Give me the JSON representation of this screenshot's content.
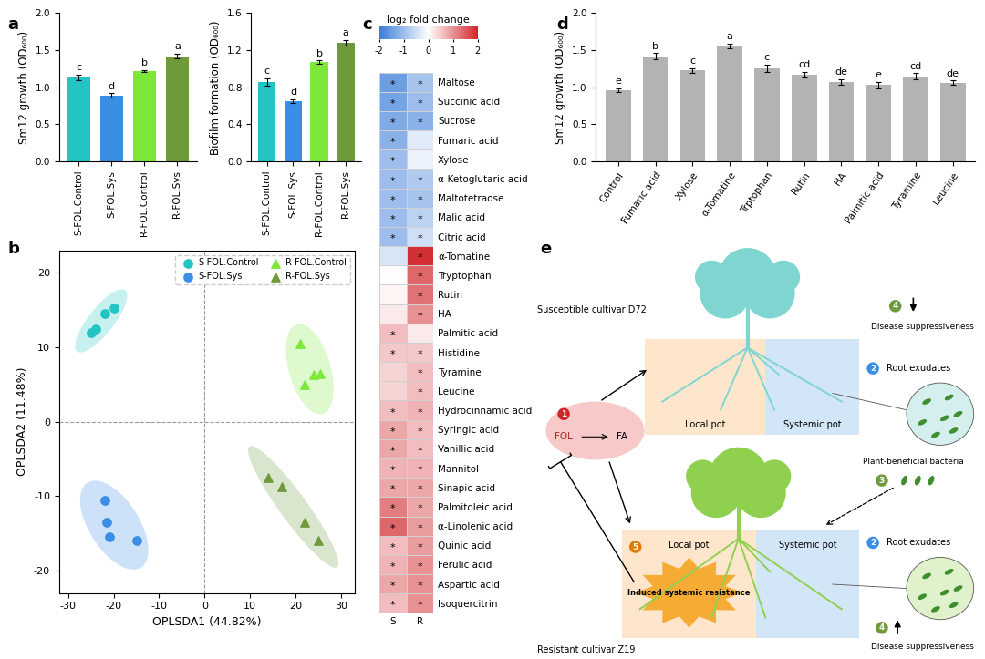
{
  "chart_data": [
    {
      "panel": "a",
      "type": "bar",
      "y_label": "Sm12 growth (OD₆₀₀)",
      "categories": [
        "S-FOL.Control",
        "S-FOL.Sys",
        "R-FOL.Control",
        "R-FOL.Sys"
      ],
      "values": [
        1.13,
        0.89,
        1.22,
        1.42
      ],
      "errors": [
        0.04,
        0.03,
        0.01,
        0.03
      ],
      "letters": [
        "c",
        "d",
        "b",
        "a"
      ],
      "colors": [
        "#22c4c4",
        "#3a8ee6",
        "#7ee83a",
        "#6f9a3c"
      ],
      "ylim": [
        0,
        2.0
      ],
      "yticks": [
        {
          "value": 0,
          "label": "0.0"
        },
        {
          "value": 0.5,
          "label": "0.5"
        },
        {
          "value": 1.0,
          "label": "1.0"
        },
        {
          "value": 1.5,
          "label": "1.5"
        },
        {
          "value": 2.0,
          "label": "2.0"
        }
      ]
    },
    {
      "type": "bar",
      "y_label": "Biofilm formation (OD₆₀₀)",
      "categories": [
        "S-FOL.Control",
        "S-FOL.Sys",
        "R-FOL.Control",
        "R-FOL.Sys"
      ],
      "values": [
        0.86,
        0.65,
        1.07,
        1.28
      ],
      "errors": [
        0.04,
        0.02,
        0.02,
        0.03
      ],
      "letters": [
        "c",
        "d",
        "b",
        "a"
      ],
      "colors": [
        "#22c4c4",
        "#3a8ee6",
        "#7ee83a",
        "#6f9a3c"
      ],
      "ylim": [
        0,
        1.6
      ],
      "yticks": [
        {
          "value": 0,
          "label": "0.0"
        },
        {
          "value": 0.4,
          "label": "0.4"
        },
        {
          "value": 0.8,
          "label": "0.8"
        },
        {
          "value": 1.2,
          "label": "1.2"
        },
        {
          "value": 1.6,
          "label": "1.6"
        }
      ]
    },
    {
      "panel": "b",
      "type": "scatter",
      "x_label": "OPLSDA1 (44.82%)",
      "y_label": "OPLSDA2 (11.48%)",
      "series": [
        {
          "name": "S-FOL.Control",
          "color": "#22c4c4",
          "marker": "o",
          "x": [
            -25,
            -24,
            -22,
            -20
          ],
          "y": [
            12,
            12.5,
            14.5,
            15.2
          ]
        },
        {
          "name": "S-FOL.Sys",
          "color": "#3a8ee6",
          "marker": "o",
          "x": [
            -22,
            -21.5,
            -21,
            -15
          ],
          "y": [
            -10.5,
            -13.5,
            -15.5,
            -16
          ]
        },
        {
          "name": "R-FOL.Control",
          "color": "#7ee83a",
          "marker": "^",
          "x": [
            21,
            22,
            24,
            25.5
          ],
          "y": [
            10.5,
            5,
            6.3,
            6.5
          ]
        },
        {
          "name": "R-FOL.Sys",
          "color": "#6f9a3c",
          "marker": "^",
          "x": [
            14,
            17,
            22,
            25
          ],
          "y": [
            -7.5,
            -8.7,
            -13.5,
            -16
          ]
        }
      ],
      "xlim": [
        -32,
        33
      ],
      "xticks": [
        -30,
        -20,
        -10,
        0,
        10,
        20,
        30
      ],
      "ylim": [
        -23,
        23
      ],
      "yticks": [
        -20,
        -10,
        0,
        10,
        20
      ],
      "legend": "upper right"
    },
    {
      "panel": "c",
      "type": "heatmap",
      "title": "log₂ fold change",
      "rows": [
        "Maltose",
        "Succinic acid",
        "Sucrose",
        "Fumaric acid",
        "Xylose",
        "α-Ketoglutaric acid",
        "Maltotetraose",
        "Malic acid",
        "Citric acid",
        "α-Tomatine",
        "Tryptophan",
        "Rutin",
        "HA",
        "Palmitic acid",
        "Histidine",
        "Tyramine",
        "Leucine",
        "Hydrocinnamic acid",
        "Syringic acid",
        "Vanillic acid",
        "Mannitol",
        "Sinapic acid",
        "Palmitoleic acid",
        "α-Linolenic acid",
        "Quinic acid",
        "Ferulic acid",
        "Aspartic acid",
        "Isoquercitrin"
      ],
      "columns": [
        "S",
        "R"
      ],
      "cells": [
        [
          -1.5,
          -0.9
        ],
        [
          -1.4,
          -1.0
        ],
        [
          -1.3,
          -1.2
        ],
        [
          -1.2,
          -0.3
        ],
        [
          -1.0,
          -0.2
        ],
        [
          -1.0,
          -0.8
        ],
        [
          -1.0,
          -0.9
        ],
        [
          -1.0,
          -0.7
        ],
        [
          -1.0,
          -0.5
        ],
        [
          -0.4,
          1.9
        ],
        [
          0.0,
          1.4
        ],
        [
          0.1,
          1.3
        ],
        [
          0.2,
          1.0
        ],
        [
          0.6,
          0.2
        ],
        [
          0.5,
          0.5
        ],
        [
          0.4,
          0.6
        ],
        [
          0.4,
          0.6
        ],
        [
          0.6,
          0.7
        ],
        [
          0.8,
          0.6
        ],
        [
          0.8,
          0.6
        ],
        [
          0.7,
          0.7
        ],
        [
          0.8,
          0.8
        ],
        [
          1.2,
          0.8
        ],
        [
          1.4,
          0.9
        ],
        [
          0.6,
          0.9
        ],
        [
          0.7,
          1.0
        ],
        [
          0.8,
          1.0
        ],
        [
          0.6,
          1.0
        ]
      ],
      "significant": [
        [
          true,
          true
        ],
        [
          true,
          true
        ],
        [
          true,
          true
        ],
        [
          true,
          false
        ],
        [
          true,
          false
        ],
        [
          true,
          true
        ],
        [
          true,
          true
        ],
        [
          true,
          true
        ],
        [
          true,
          true
        ],
        [
          false,
          true
        ],
        [
          false,
          true
        ],
        [
          false,
          true
        ],
        [
          false,
          true
        ],
        [
          true,
          false
        ],
        [
          true,
          true
        ],
        [
          false,
          true
        ],
        [
          false,
          true
        ],
        [
          true,
          true
        ],
        [
          true,
          true
        ],
        [
          true,
          true
        ],
        [
          true,
          true
        ],
        [
          true,
          true
        ],
        [
          true,
          true
        ],
        [
          true,
          true
        ],
        [
          true,
          true
        ],
        [
          true,
          true
        ],
        [
          true,
          true
        ],
        [
          true,
          true
        ]
      ],
      "significance_label": "*",
      "color_range": [
        -2,
        2
      ],
      "color_ticks": [
        -2,
        -1,
        0,
        1,
        2
      ],
      "colors": [
        "#3b7dd8",
        "#ffffff",
        "#d0262a"
      ]
    },
    {
      "panel": "d",
      "type": "bar",
      "y_label": "Sm12 growth (OD₆₀₀)",
      "categories": [
        "Control",
        "Fumaric acid",
        "Xylose",
        "α-Tomatine",
        "Trptophan",
        "Rutin",
        "HA",
        "Palmitic acid",
        "Tyramine",
        "Leucine"
      ],
      "values": [
        0.96,
        1.42,
        1.23,
        1.56,
        1.26,
        1.17,
        1.07,
        1.03,
        1.15,
        1.06
      ],
      "errors": [
        0.03,
        0.04,
        0.03,
        0.03,
        0.05,
        0.04,
        0.04,
        0.04,
        0.04,
        0.03
      ],
      "letters": [
        "e",
        "b",
        "c",
        "a",
        "c",
        "cd",
        "de",
        "e",
        "cd",
        "de"
      ],
      "color": "#b3b3b3",
      "ylim": [
        0,
        2.0
      ],
      "yticks": [
        {
          "value": 0,
          "label": "0.0"
        },
        {
          "value": 0.5,
          "label": "0.5"
        },
        {
          "value": 1.0,
          "label": "1.0"
        },
        {
          "value": 1.5,
          "label": "1.5"
        },
        {
          "value": 2.0,
          "label": "2.0"
        }
      ]
    }
  ],
  "diagram": {
    "panel": "e",
    "plants": [
      {
        "label": "Susceptible cultivar D72",
        "local_pot": "Local pot",
        "systemic_pot": "Systemic pot",
        "root_exudates": "Root exudates",
        "suppressiveness": "Disease suppressiveness"
      },
      {
        "label": "Resistant cultivar Z19",
        "local_pot": "Local pot",
        "systemic_pot": "Systemic pot",
        "root_exudates": "Root exudates",
        "suppressiveness": "Disease suppressiveness",
        "resistance": "Induced systemic resistance"
      }
    ],
    "pathogen": "FOL",
    "toxin": "FA",
    "bacteria": "Plant-beneficial bacteria",
    "steps": [
      "1",
      "2",
      "3",
      "4",
      "5"
    ]
  }
}
